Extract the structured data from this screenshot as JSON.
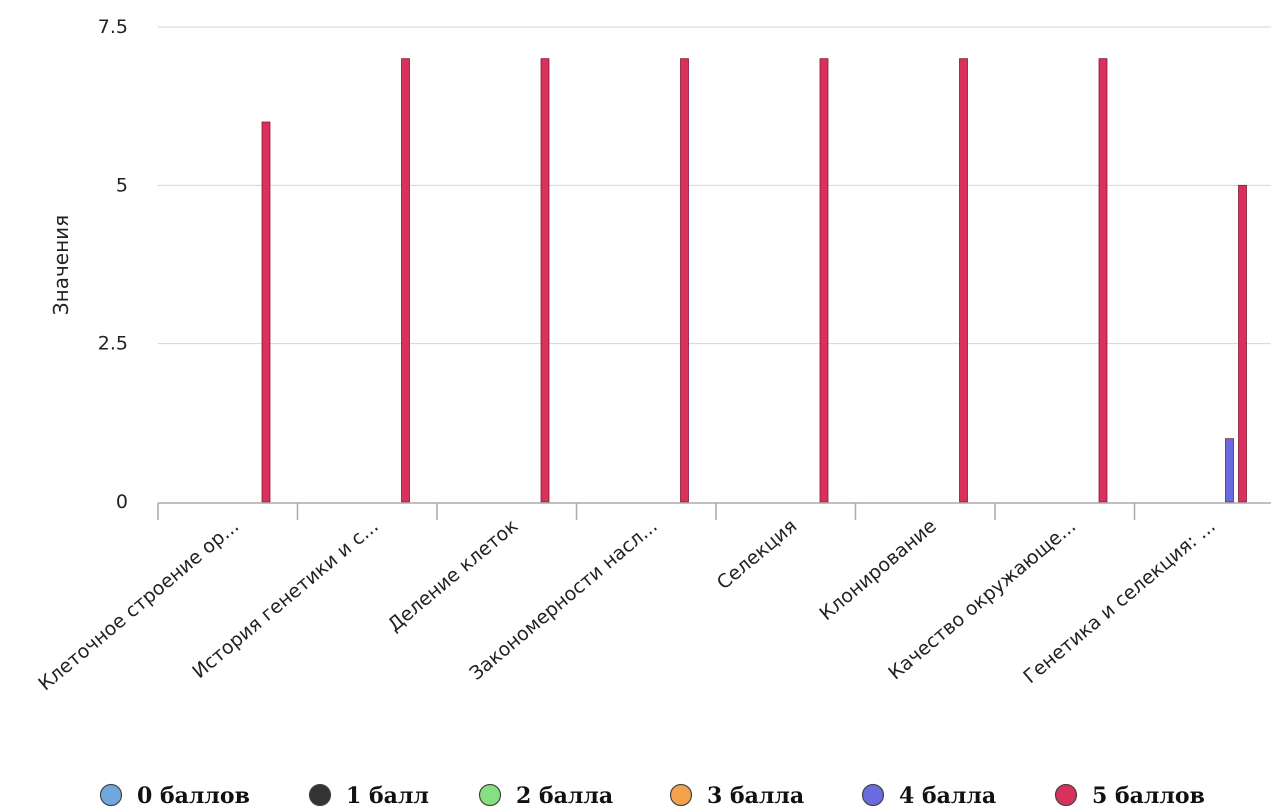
{
  "chart_data": {
    "type": "bar",
    "ylabel": "Значения",
    "ylim": [
      0,
      7.5
    ],
    "yticks": [
      "0",
      "2.5",
      "5",
      "7.5"
    ],
    "categories": [
      "Клеточное строение ор...",
      "История генетики и с...",
      "Деление клеток",
      "Закономерности насл...",
      "Селекция",
      "Клонирование",
      "Качество окружающе...",
      "Генетика и селекция: ..."
    ],
    "series": [
      {
        "name": "0 баллов",
        "color": "#6fa8dc",
        "values": [
          0,
          0,
          0,
          0,
          0,
          0,
          0,
          0
        ]
      },
      {
        "name": "1 балл",
        "color": "#333333",
        "values": [
          0,
          0,
          0,
          0,
          0,
          0,
          0,
          0
        ]
      },
      {
        "name": "2 балла",
        "color": "#86e07f",
        "values": [
          0,
          0,
          0,
          0,
          0,
          0,
          0,
          0
        ]
      },
      {
        "name": "3 балла",
        "color": "#f4a24c",
        "values": [
          0,
          0,
          0,
          0,
          0,
          0,
          0,
          0
        ]
      },
      {
        "name": "4 балла",
        "color": "#6b6be0",
        "values": [
          0,
          0,
          0,
          0,
          0,
          0,
          0,
          1
        ]
      },
      {
        "name": "5 баллов",
        "color": "#d8315b",
        "values": [
          6,
          7,
          7,
          7,
          7,
          7,
          7,
          5
        ]
      }
    ],
    "grid": true,
    "legend": "bottom"
  }
}
